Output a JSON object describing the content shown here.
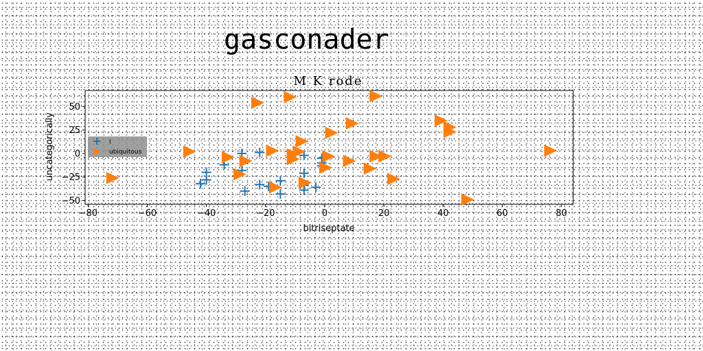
{
  "page_title": "gasconader",
  "chart_data": {
    "type": "scatter",
    "title": "M K rode",
    "xlabel": "bitriseptate",
    "ylabel": "uncategorically",
    "xlim": [
      -81,
      84
    ],
    "ylim": [
      -54,
      67
    ],
    "xticks": [
      -80,
      -60,
      -40,
      -20,
      0,
      20,
      40,
      60,
      80
    ],
    "yticks": [
      -50,
      -25,
      0,
      25,
      50
    ],
    "grid": false,
    "legend_position": "center-left",
    "series": [
      {
        "name": "l",
        "marker": "plus",
        "color": "#1f77b4",
        "points": [
          [
            -42,
            -32
          ],
          [
            -40,
            -20
          ],
          [
            -40,
            -28
          ],
          [
            -34,
            -12
          ],
          [
            -28,
            0
          ],
          [
            -28,
            -18
          ],
          [
            -27,
            -40
          ],
          [
            -22,
            1
          ],
          [
            -22,
            -33
          ],
          [
            -19,
            -35
          ],
          [
            -15,
            -43
          ],
          [
            -15,
            -29
          ],
          [
            -7,
            -2
          ],
          [
            -7,
            -21
          ],
          [
            -7,
            -34
          ],
          [
            -7,
            -39
          ],
          [
            -3,
            -36
          ],
          [
            -1,
            -5
          ],
          [
            -1,
            -10
          ],
          [
            -1,
            -13
          ],
          [
            0,
            -4
          ]
        ]
      },
      {
        "name": "ubiquitous",
        "marker": "triangle-right",
        "color": "#ff7f0e",
        "points": [
          [
            -72,
            -26
          ],
          [
            -46,
            2
          ],
          [
            -33,
            -4
          ],
          [
            -29,
            -22
          ],
          [
            -27,
            -8
          ],
          [
            -23,
            54
          ],
          [
            -18,
            3
          ],
          [
            -17,
            -36
          ],
          [
            -12,
            60
          ],
          [
            -11,
            -6
          ],
          [
            -11,
            -1
          ],
          [
            -9,
            2
          ],
          [
            -8,
            13
          ],
          [
            -7,
            -31
          ],
          [
            0,
            -15
          ],
          [
            1,
            -3
          ],
          [
            2,
            22
          ],
          [
            8,
            -8
          ],
          [
            9,
            32
          ],
          [
            15,
            -16
          ],
          [
            17,
            61
          ],
          [
            17,
            -3
          ],
          [
            20,
            -3
          ],
          [
            23,
            -27
          ],
          [
            39,
            35
          ],
          [
            42,
            28
          ],
          [
            42,
            23
          ],
          [
            48,
            -49
          ],
          [
            76,
            3
          ]
        ]
      }
    ]
  }
}
